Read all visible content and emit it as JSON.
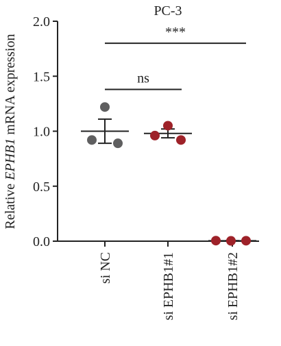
{
  "chart_data": {
    "type": "scatter",
    "title": "PC-3",
    "ylabel_parts": [
      {
        "text": "Relative ",
        "italic": false
      },
      {
        "text": "EPHB1",
        "italic": true
      },
      {
        "text": " mRNA expression",
        "italic": false
      }
    ],
    "ylim": [
      0,
      2.0
    ],
    "yticks": [
      "0.0",
      "0.5",
      "1.0",
      "1.5",
      "2.0"
    ],
    "categories": [
      "si NC",
      "si EPHB1#1",
      "si EPHB1#2"
    ],
    "groups": [
      {
        "category": "si NC",
        "color": "#5f5f60",
        "points": [
          1.22,
          0.92,
          0.89
        ],
        "mean": 1.0,
        "sem_upper": 1.11,
        "sem_lower": 0.89
      },
      {
        "category": "si EPHB1#1",
        "color": "#9e2229",
        "points": [
          1.05,
          0.96,
          0.92
        ],
        "mean": 0.98,
        "sem_upper": 1.02,
        "sem_lower": 0.94
      },
      {
        "category": "si EPHB1#2",
        "color": "#9e2229",
        "points": [
          0.005,
          0.003,
          0.004
        ],
        "mean": 0.004,
        "sem_upper": 0.005,
        "sem_lower": 0.003
      }
    ],
    "significance": [
      {
        "from": "si NC",
        "to": "si EPHB1#1",
        "label": "ns",
        "y": 1.38
      },
      {
        "from": "si NC",
        "to": "si EPHB1#2",
        "label": "***",
        "y": 1.8
      }
    ],
    "grid": false
  }
}
